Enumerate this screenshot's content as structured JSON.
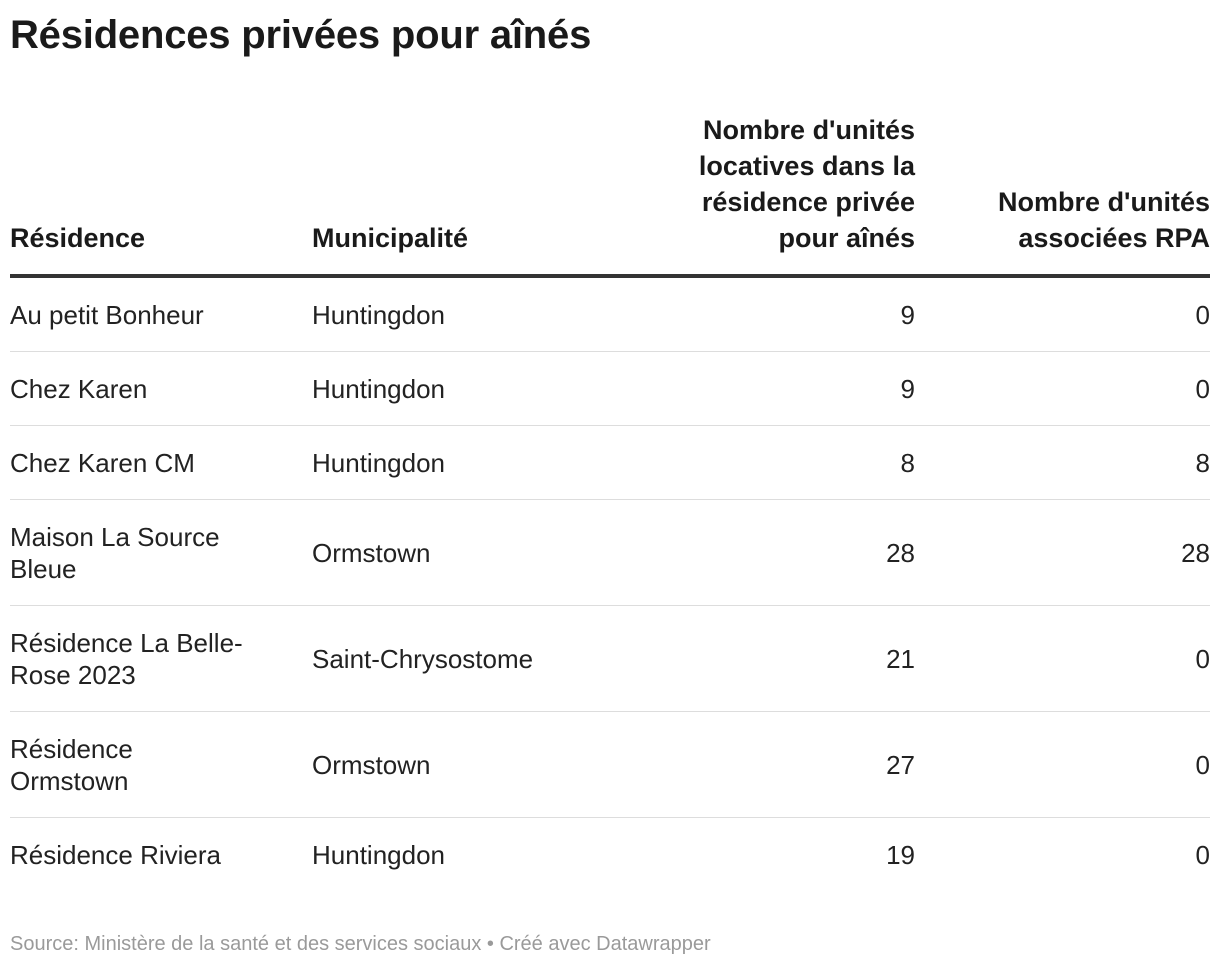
{
  "title": "Résidences privées pour aînés",
  "footer": "Source: Ministère de la santé et des services sociaux • Créé avec Datawrapper",
  "chart_data": {
    "type": "table",
    "columns": [
      "Résidence",
      "Municipalité",
      "Nombre d'unités locatives dans la résidence privée pour aînés",
      "Nombre d'unités associées RPA"
    ],
    "rows": [
      {
        "residence": "Au petit Bonheur",
        "municipalite": "Huntingdon",
        "unites": 9,
        "associees": 0
      },
      {
        "residence": "Chez Karen",
        "municipalite": "Huntingdon",
        "unites": 9,
        "associees": 0
      },
      {
        "residence": "Chez Karen CM",
        "municipalite": "Huntingdon",
        "unites": 8,
        "associees": 8
      },
      {
        "residence": "Maison La Source Bleue",
        "municipalite": "Ormstown",
        "unites": 28,
        "associees": 28
      },
      {
        "residence": "Résidence La Belle-Rose 2023",
        "municipalite": "Saint-Chrysostome",
        "unites": 21,
        "associees": 0
      },
      {
        "residence": "Résidence Ormstown",
        "municipalite": "Ormstown",
        "unites": 27,
        "associees": 0
      },
      {
        "residence": "Résidence Riviera",
        "municipalite": "Huntingdon",
        "unites": 19,
        "associees": 0
      }
    ]
  }
}
